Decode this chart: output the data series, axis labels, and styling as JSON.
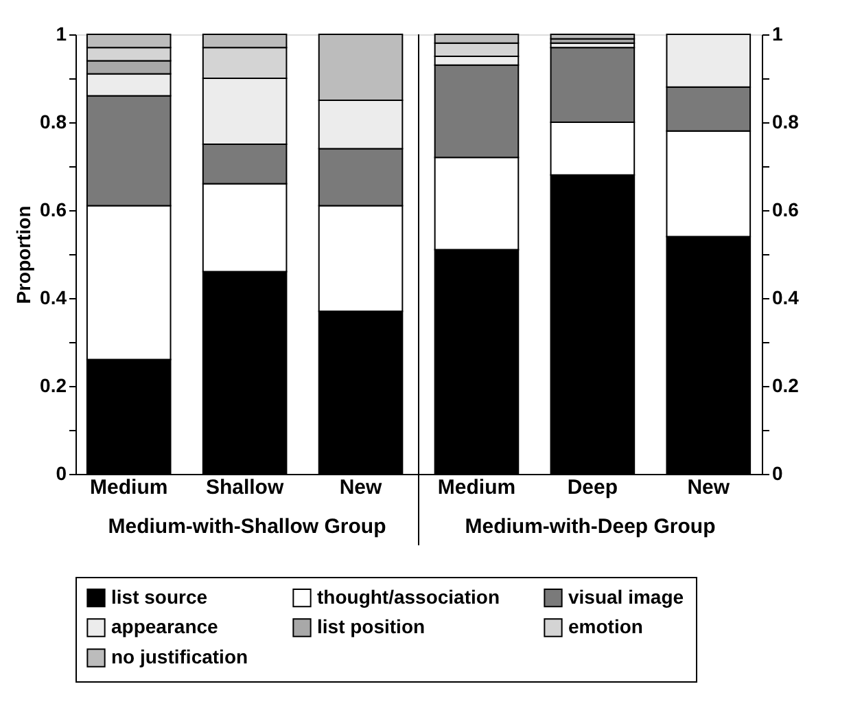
{
  "chart_data": {
    "type": "bar",
    "stacked": true,
    "ylabel": "Proportion",
    "categories": [
      "Medium",
      "Shallow",
      "New",
      "Medium",
      "Deep",
      "New"
    ],
    "series": [
      {
        "name": "list source",
        "color": "#000000",
        "values": [
          0.26,
          0.46,
          0.37,
          0.51,
          0.68,
          0.54
        ]
      },
      {
        "name": "thought/association",
        "color": "#ffffff",
        "values": [
          0.35,
          0.2,
          0.24,
          0.21,
          0.12,
          0.24
        ]
      },
      {
        "name": "visual image",
        "color": "#7a7a7a",
        "values": [
          0.25,
          0.09,
          0.13,
          0.21,
          0.17,
          0.1
        ]
      },
      {
        "name": "appearance",
        "color": "#ececec",
        "values": [
          0.05,
          0.15,
          0.11,
          0.02,
          0.01,
          0.12
        ]
      },
      {
        "name": "list position",
        "color": "#a8a8a8",
        "values": [
          0.03,
          0,
          0,
          0,
          0.01,
          0
        ]
      },
      {
        "name": "emotion",
        "color": "#d4d4d4",
        "values": [
          0.03,
          0.07,
          0,
          0.03,
          0,
          0
        ]
      },
      {
        "name": "no justification",
        "color": "#bcbcbc",
        "values": [
          0.03,
          0.03,
          0.15,
          0.02,
          0.01,
          0
        ]
      }
    ],
    "ylim": [
      0,
      1
    ],
    "yticks": [
      0,
      {
        "value": 0.1,
        "label": null
      },
      0.2,
      {
        "value": 0.3,
        "label": null
      },
      0.4,
      {
        "value": 0.5,
        "label": null
      },
      0.6,
      {
        "value": 0.7,
        "label": null
      },
      0.8,
      {
        "value": 0.9,
        "label": null
      },
      1
    ],
    "y2lim": [
      0,
      1
    ],
    "y2ticks": [
      0,
      {
        "value": 0.1,
        "label": null
      },
      0.2,
      {
        "value": 0.3,
        "label": null
      },
      0.4,
      {
        "value": 0.5,
        "label": null
      },
      0.6,
      {
        "value": 0.7,
        "label": null
      },
      0.8,
      {
        "value": 0.9,
        "label": null
      },
      1
    ],
    "annotations": [
      "Medium-with-Shallow Group",
      "Medium-with-Deep Group"
    ],
    "legend": "bottom",
    "grid": false
  }
}
